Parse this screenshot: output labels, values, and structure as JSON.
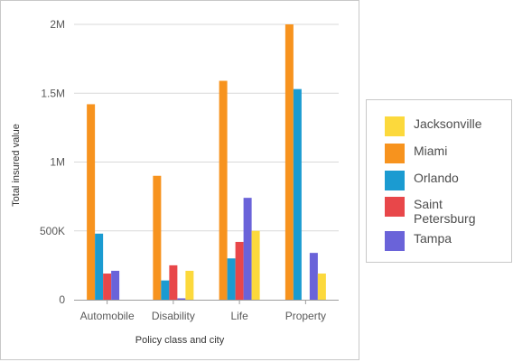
{
  "chart_data": {
    "type": "bar",
    "xlabel": "Policy class and city",
    "ylabel": "Total insured value",
    "ylim": [
      0,
      2000000
    ],
    "y_ticks": [
      {
        "value": 0,
        "label": "0"
      },
      {
        "value": 500000,
        "label": "500K"
      },
      {
        "value": 1000000,
        "label": "1M"
      },
      {
        "value": 1500000,
        "label": "1.5M"
      },
      {
        "value": 2000000,
        "label": "2M"
      }
    ],
    "grid": true,
    "legend_position": "right",
    "categories": [
      "Automobile",
      "Disability",
      "Life",
      "Property"
    ],
    "series": [
      {
        "name": "Miami",
        "color": "#f7931e",
        "values": [
          1420000,
          900000,
          1590000,
          2000000
        ]
      },
      {
        "name": "Orlando",
        "color": "#1b9bd1",
        "values": [
          480000,
          140000,
          300000,
          1530000
        ]
      },
      {
        "name": "Saint Petersburg",
        "color": "#e8474a",
        "values": [
          190000,
          250000,
          420000,
          0
        ]
      },
      {
        "name": "Tampa",
        "color": "#6a63d9",
        "values": [
          210000,
          10000,
          740000,
          340000
        ]
      },
      {
        "name": "Jacksonville",
        "color": "#fcd93c",
        "values": [
          0,
          210000,
          500000,
          190000
        ]
      }
    ]
  },
  "legend": [
    {
      "label": "Jacksonville",
      "color": "#fcd93c"
    },
    {
      "label": "Miami",
      "color": "#f7931e"
    },
    {
      "label": "Orlando",
      "color": "#1b9bd1"
    },
    {
      "label": "Saint Petersburg",
      "color": "#e8474a"
    },
    {
      "label": "Tampa",
      "color": "#6a63d9"
    }
  ]
}
